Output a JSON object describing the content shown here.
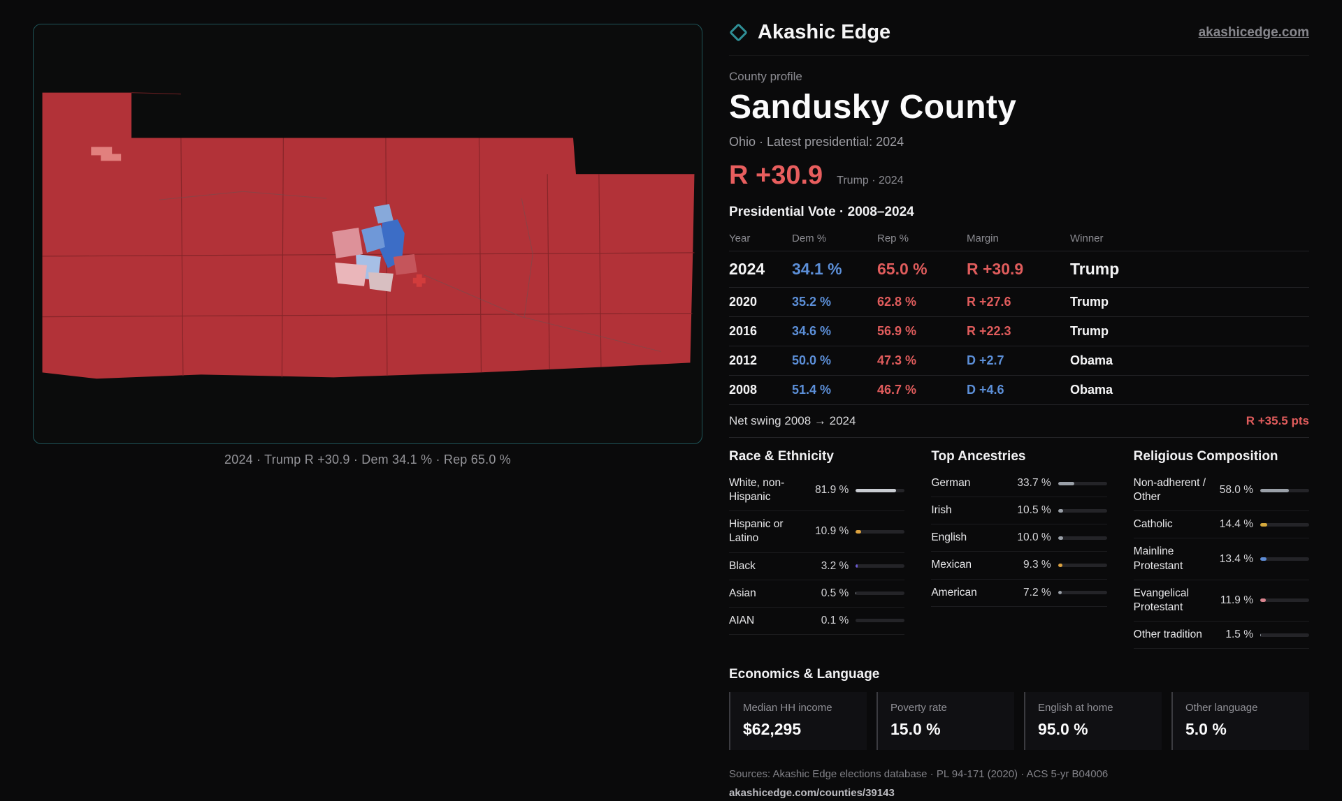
{
  "meta": {
    "accent_red": "#e05c5c",
    "accent_blue": "#5c8fd8",
    "accent_teal": "#2f8f96",
    "map_red": "#b23238"
  },
  "brand": {
    "name": "Akashic Edge",
    "site": "akashicedge.com",
    "diamond_icon": "diamond-outline"
  },
  "header": {
    "eyebrow": "County profile",
    "title": "Sandusky County",
    "subtitle": "Ohio · Latest presidential: 2024",
    "headline_margin": "R +30.9",
    "headline_note": "Trump · 2024"
  },
  "map": {
    "caption": "2024 · Trump R +30.9 · Dem 34.1 % · Rep 65.0 %"
  },
  "vote_table": {
    "section_title": "Presidential Vote · 2008–2024",
    "columns": {
      "year": "Year",
      "dem": "Dem %",
      "rep": "Rep %",
      "margin": "Margin",
      "winner": "Winner"
    },
    "rows": [
      {
        "year": "2024",
        "dem": "34.1 %",
        "rep": "65.0 %",
        "margin": "R +30.9",
        "margin_color": "#e05c5c",
        "winner": "Trump"
      },
      {
        "year": "2020",
        "dem": "35.2 %",
        "rep": "62.8 %",
        "margin": "R +27.6",
        "margin_color": "#e05c5c",
        "winner": "Trump"
      },
      {
        "year": "2016",
        "dem": "34.6 %",
        "rep": "56.9 %",
        "margin": "R +22.3",
        "margin_color": "#e05c5c",
        "winner": "Trump"
      },
      {
        "year": "2012",
        "dem": "50.0 %",
        "rep": "47.3 %",
        "margin": "D +2.7",
        "margin_color": "#5c8fd8",
        "winner": "Obama"
      },
      {
        "year": "2008",
        "dem": "51.4 %",
        "rep": "46.7 %",
        "margin": "D +4.6",
        "margin_color": "#5c8fd8",
        "winner": "Obama"
      }
    ],
    "net_swing_label": "Net swing 2008 → 2024",
    "net_swing_value": "R +35.5 pts"
  },
  "demographics": {
    "race": {
      "title": "Race & Ethnicity",
      "items": [
        {
          "label": "White, non-Hispanic",
          "value": "81.9 %",
          "pct": 81.9,
          "color": "#c9ccd2"
        },
        {
          "label": "Hispanic or Latino",
          "value": "10.9 %",
          "pct": 10.9,
          "color": "#dca23f"
        },
        {
          "label": "Black",
          "value": "3.2 %",
          "pct": 3.2,
          "color": "#6b5bd2"
        },
        {
          "label": "Asian",
          "value": "0.5 %",
          "pct": 0.5,
          "color": "#9aa0a8"
        },
        {
          "label": "AIAN",
          "value": "0.1 %",
          "pct": 0.1,
          "color": "#9aa0a8"
        }
      ]
    },
    "ancestries": {
      "title": "Top Ancestries",
      "items": [
        {
          "label": "German",
          "value": "33.7 %",
          "pct": 33.7,
          "color": "#9aa0a8"
        },
        {
          "label": "Irish",
          "value": "10.5 %",
          "pct": 10.5,
          "color": "#9aa0a8"
        },
        {
          "label": "English",
          "value": "10.0 %",
          "pct": 10.0,
          "color": "#9aa0a8"
        },
        {
          "label": "Mexican",
          "value": "9.3 %",
          "pct": 9.3,
          "color": "#dca23f"
        },
        {
          "label": "American",
          "value": "7.2 %",
          "pct": 7.2,
          "color": "#9aa0a8"
        }
      ]
    },
    "religion": {
      "title": "Religious Composition",
      "items": [
        {
          "label": "Non-adherent / Other",
          "value": "58.0 %",
          "pct": 58.0,
          "color": "#9aa0a8"
        },
        {
          "label": "Catholic",
          "value": "14.4 %",
          "pct": 14.4,
          "color": "#d4a83c"
        },
        {
          "label": "Mainline Protestant",
          "value": "13.4 %",
          "pct": 13.4,
          "color": "#5d8bd4"
        },
        {
          "label": "Evangelical Protestant",
          "value": "11.9 %",
          "pct": 11.9,
          "color": "#d9848e"
        },
        {
          "label": "Other tradition",
          "value": "1.5 %",
          "pct": 1.5,
          "color": "#9aa0a8"
        }
      ]
    }
  },
  "economics": {
    "title": "Economics & Language",
    "stats": [
      {
        "label": "Median HH income",
        "value": "$62,295"
      },
      {
        "label": "Poverty rate",
        "value": "15.0 %"
      },
      {
        "label": "English at home",
        "value": "95.0 %"
      },
      {
        "label": "Other language",
        "value": "5.0 %"
      }
    ]
  },
  "footer": {
    "sources": "Sources: Akashic Edge elections database · PL 94-171 (2020) · ACS 5-yr B04006",
    "permalink": "akashicedge.com/counties/39143"
  }
}
